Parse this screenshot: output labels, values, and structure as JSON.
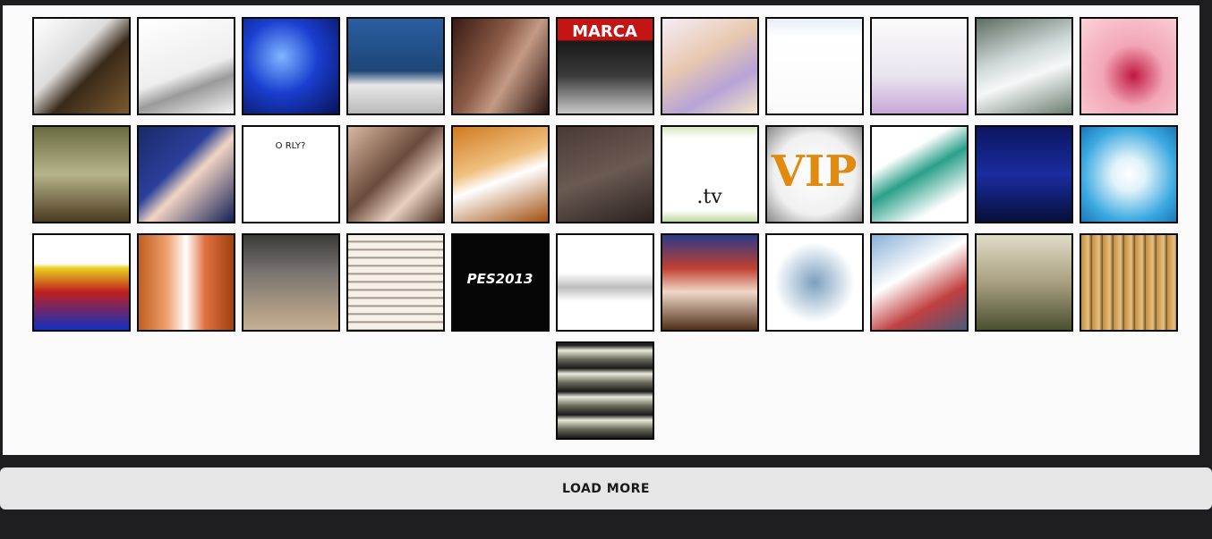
{
  "load_more_label": "LOAD MORE",
  "thumbnails": [
    {
      "id": "thumb-01",
      "name": "steampunk-machine-thumbnail",
      "bg": "linear-gradient(135deg,#fff 0%,#ddd 40%,#3a2a18 60%,#7a5a30 100%)"
    },
    {
      "id": "thumb-02",
      "name": "sketch-creature-thumbnail",
      "bg": "linear-gradient(160deg,#ffffff 0%,#eeeeee 55%,#9a9a9a 70%,#f5f5f5 100%)"
    },
    {
      "id": "thumb-03",
      "name": "concert-stage-thumbnail",
      "bg": "radial-gradient(circle at 40% 40%,#7fb6ff 0%,#1a3fd0 45%,#08125a 100%)"
    },
    {
      "id": "thumb-04",
      "name": "boat-photo-thumbnail",
      "bg": "linear-gradient(180deg,#2a5ea0 0%,#1d4678 55%,#e8e8e8 70%,#b9b9b9 100%)"
    },
    {
      "id": "thumb-05",
      "name": "two-women-photo-thumbnail",
      "bg": "linear-gradient(120deg,#3a1a14 0%,#8a5a46 40%,#c49a84 60%,#2a1410 100%)"
    },
    {
      "id": "thumb-06",
      "name": "marca-cover-thumbnail",
      "bg": "linear-gradient(180deg,#c41414 0%,#c41414 22%,#1a1a1a 24%,#3a3a3a 60%,#c9c9c9 100%)"
    },
    {
      "id": "thumb-07",
      "name": "anime-group-thumbnail",
      "bg": "linear-gradient(150deg,#f5ecf8 0%,#e8c9b0 40%,#b7a3d6 70%,#f4e6c8 100%)"
    },
    {
      "id": "thumb-08",
      "name": "file-explorer-thumbnail",
      "bg": "linear-gradient(180deg,#e8eef8 0%,#ffffff 20%,#fafafa 100%)"
    },
    {
      "id": "thumb-09",
      "name": "idol-girl-thumbnail",
      "bg": "linear-gradient(180deg,#fbfbfb 0%,#e9e4ef 60%,#c8a8d8 100%)"
    },
    {
      "id": "thumb-10",
      "name": "waterfall-thumbnail",
      "bg": "linear-gradient(160deg,#5d6e62 0%,#cfd8d8 40%,#f5f8f8 60%,#6d7e70 100%)"
    },
    {
      "id": "thumb-11",
      "name": "red-dress-thumbnail",
      "bg": "radial-gradient(circle at 55% 60%,#c01840 0%,#f2a6b6 40%,#fbd2d8 100%)"
    },
    {
      "id": "thumb-12",
      "name": "game-interior-thumbnail",
      "bg": "linear-gradient(180deg,#6a6a40 0%,#b6b48a 50%,#4a3a20 100%)"
    },
    {
      "id": "thumb-13",
      "name": "man-suit-thumbnail",
      "bg": "linear-gradient(135deg,#1a2a6a 0%,#2a3f9a 40%,#f1d4c2 55%,#142058 100%)"
    },
    {
      "id": "thumb-14",
      "name": "o-rly-drawing-thumbnail",
      "bg": "#ffffff"
    },
    {
      "id": "thumb-15",
      "name": "two-girls-selfie-thumbnail",
      "bg": "linear-gradient(135deg,#d8b8a0 0%,#6a4a3a 45%,#e8d0c0 70%,#4a3020 100%)"
    },
    {
      "id": "thumb-16",
      "name": "soccer-player-thumbnail",
      "bg": "linear-gradient(160deg,#d07a20 0%,#f0c080 40%,#ffffff 55%,#a05010 100%)"
    },
    {
      "id": "thumb-17",
      "name": "blanket-note-thumbnail",
      "bg": "linear-gradient(160deg,#4a3a34 0%,#6a5a52 50%,#2a2220 100%)"
    },
    {
      "id": "thumb-18",
      "name": "tv-fact-thumbnail",
      "bg": "linear-gradient(180deg,#d8e8c0 0%,#ffffff 12%,#ffffff 88%,#c0d8a0 100%)"
    },
    {
      "id": "thumb-19",
      "name": "vip-text-thumbnail",
      "bg": "radial-gradient(ellipse at 50% 50%,#ffffff 0%,#f0f0f0 60%,#8a8a8a 100%)"
    },
    {
      "id": "thumb-20",
      "name": "dinosaur-illustration-thumbnail",
      "bg": "linear-gradient(150deg,#ffffff 0%,#ffffff 30%,#2aa08a 50%,#ffffff 80%)"
    },
    {
      "id": "thumb-21",
      "name": "girls-generation-thumbnail",
      "bg": "linear-gradient(180deg,#0c1660 0%,#1a2ca0 50%,#06103a 100%)"
    },
    {
      "id": "thumb-22",
      "name": "white-flower-thumbnail",
      "bg": "radial-gradient(circle at 50% 50%,#ffffff 0%,#dff2fa 25%,#3aa8e0 70%,#1a78b8 100%)"
    },
    {
      "id": "thumb-23",
      "name": "pixel-character-thumbnail",
      "bg": "linear-gradient(180deg,#ffffff 0%,#ffffff 30%,#e8d020 35%,#c02020 60%,#1030c0 100%)"
    },
    {
      "id": "thumb-24",
      "name": "anime-closeup-thumbnail",
      "bg": "linear-gradient(90deg,#c06020 0%,#f0a070 30%,#ffffff 50%,#e07040 70%,#a04010 100%)"
    },
    {
      "id": "thumb-25",
      "name": "tiled-room-thumbnail",
      "bg": "linear-gradient(180deg,#3a3a38 0%,#7a7470 40%,#c8b090 100%)"
    },
    {
      "id": "thumb-26",
      "name": "text-document-thumbnail",
      "bg": "repeating-linear-gradient(180deg,#f5f0e8 0px,#f5f0e8 6px,#8a7a6a 7px,#f5f0e8 9px)"
    },
    {
      "id": "thumb-27",
      "name": "pes-2013-thumbnail",
      "bg": "#050505"
    },
    {
      "id": "thumb-28",
      "name": "blank-gradient-thumbnail",
      "bg": "linear-gradient(180deg,#ffffff 0%,#ffffff 40%,#bdbdbd 55%,#ffffff 70%,#ffffff 100%)"
    },
    {
      "id": "thumb-29",
      "name": "news-anchor-thumbnail",
      "bg": "linear-gradient(180deg,#2a3a8a 0%,#c04030 35%,#f0d8c8 60%,#50301a 100%)"
    },
    {
      "id": "thumb-30",
      "name": "sea-creature-thumbnail",
      "bg": "radial-gradient(ellipse at 50% 50%,#7aa0c0 0%,#ffffff 60%)"
    },
    {
      "id": "thumb-31",
      "name": "anime-friends-thumbnail",
      "bg": "linear-gradient(150deg,#8ab0d8 0%,#ffffff 40%,#c04040 70%,#4a5a7a 100%)"
    },
    {
      "id": "thumb-32",
      "name": "game-soldier-thumbnail",
      "bg": "linear-gradient(180deg,#e0dcc8 0%,#a8a080 50%,#4a5030 100%)"
    },
    {
      "id": "thumb-33",
      "name": "store-shelves-thumbnail",
      "bg": "repeating-linear-gradient(90deg,#c09040 0px,#e8c080 8px,#6a4a20 12px)"
    },
    {
      "id": "thumb-34",
      "name": "comic-page-thumbnail",
      "bg": "repeating-linear-gradient(0deg,#1a1a1a 0px,#6a6a5a 10px,#eaeada 20px,#1a1a1a 26px)"
    }
  ],
  "captions": {
    "vip": "VIP",
    "pes": "PES2013",
    "orly": "O RLY?",
    "tv": ".tv",
    "marca": "MARCA"
  }
}
